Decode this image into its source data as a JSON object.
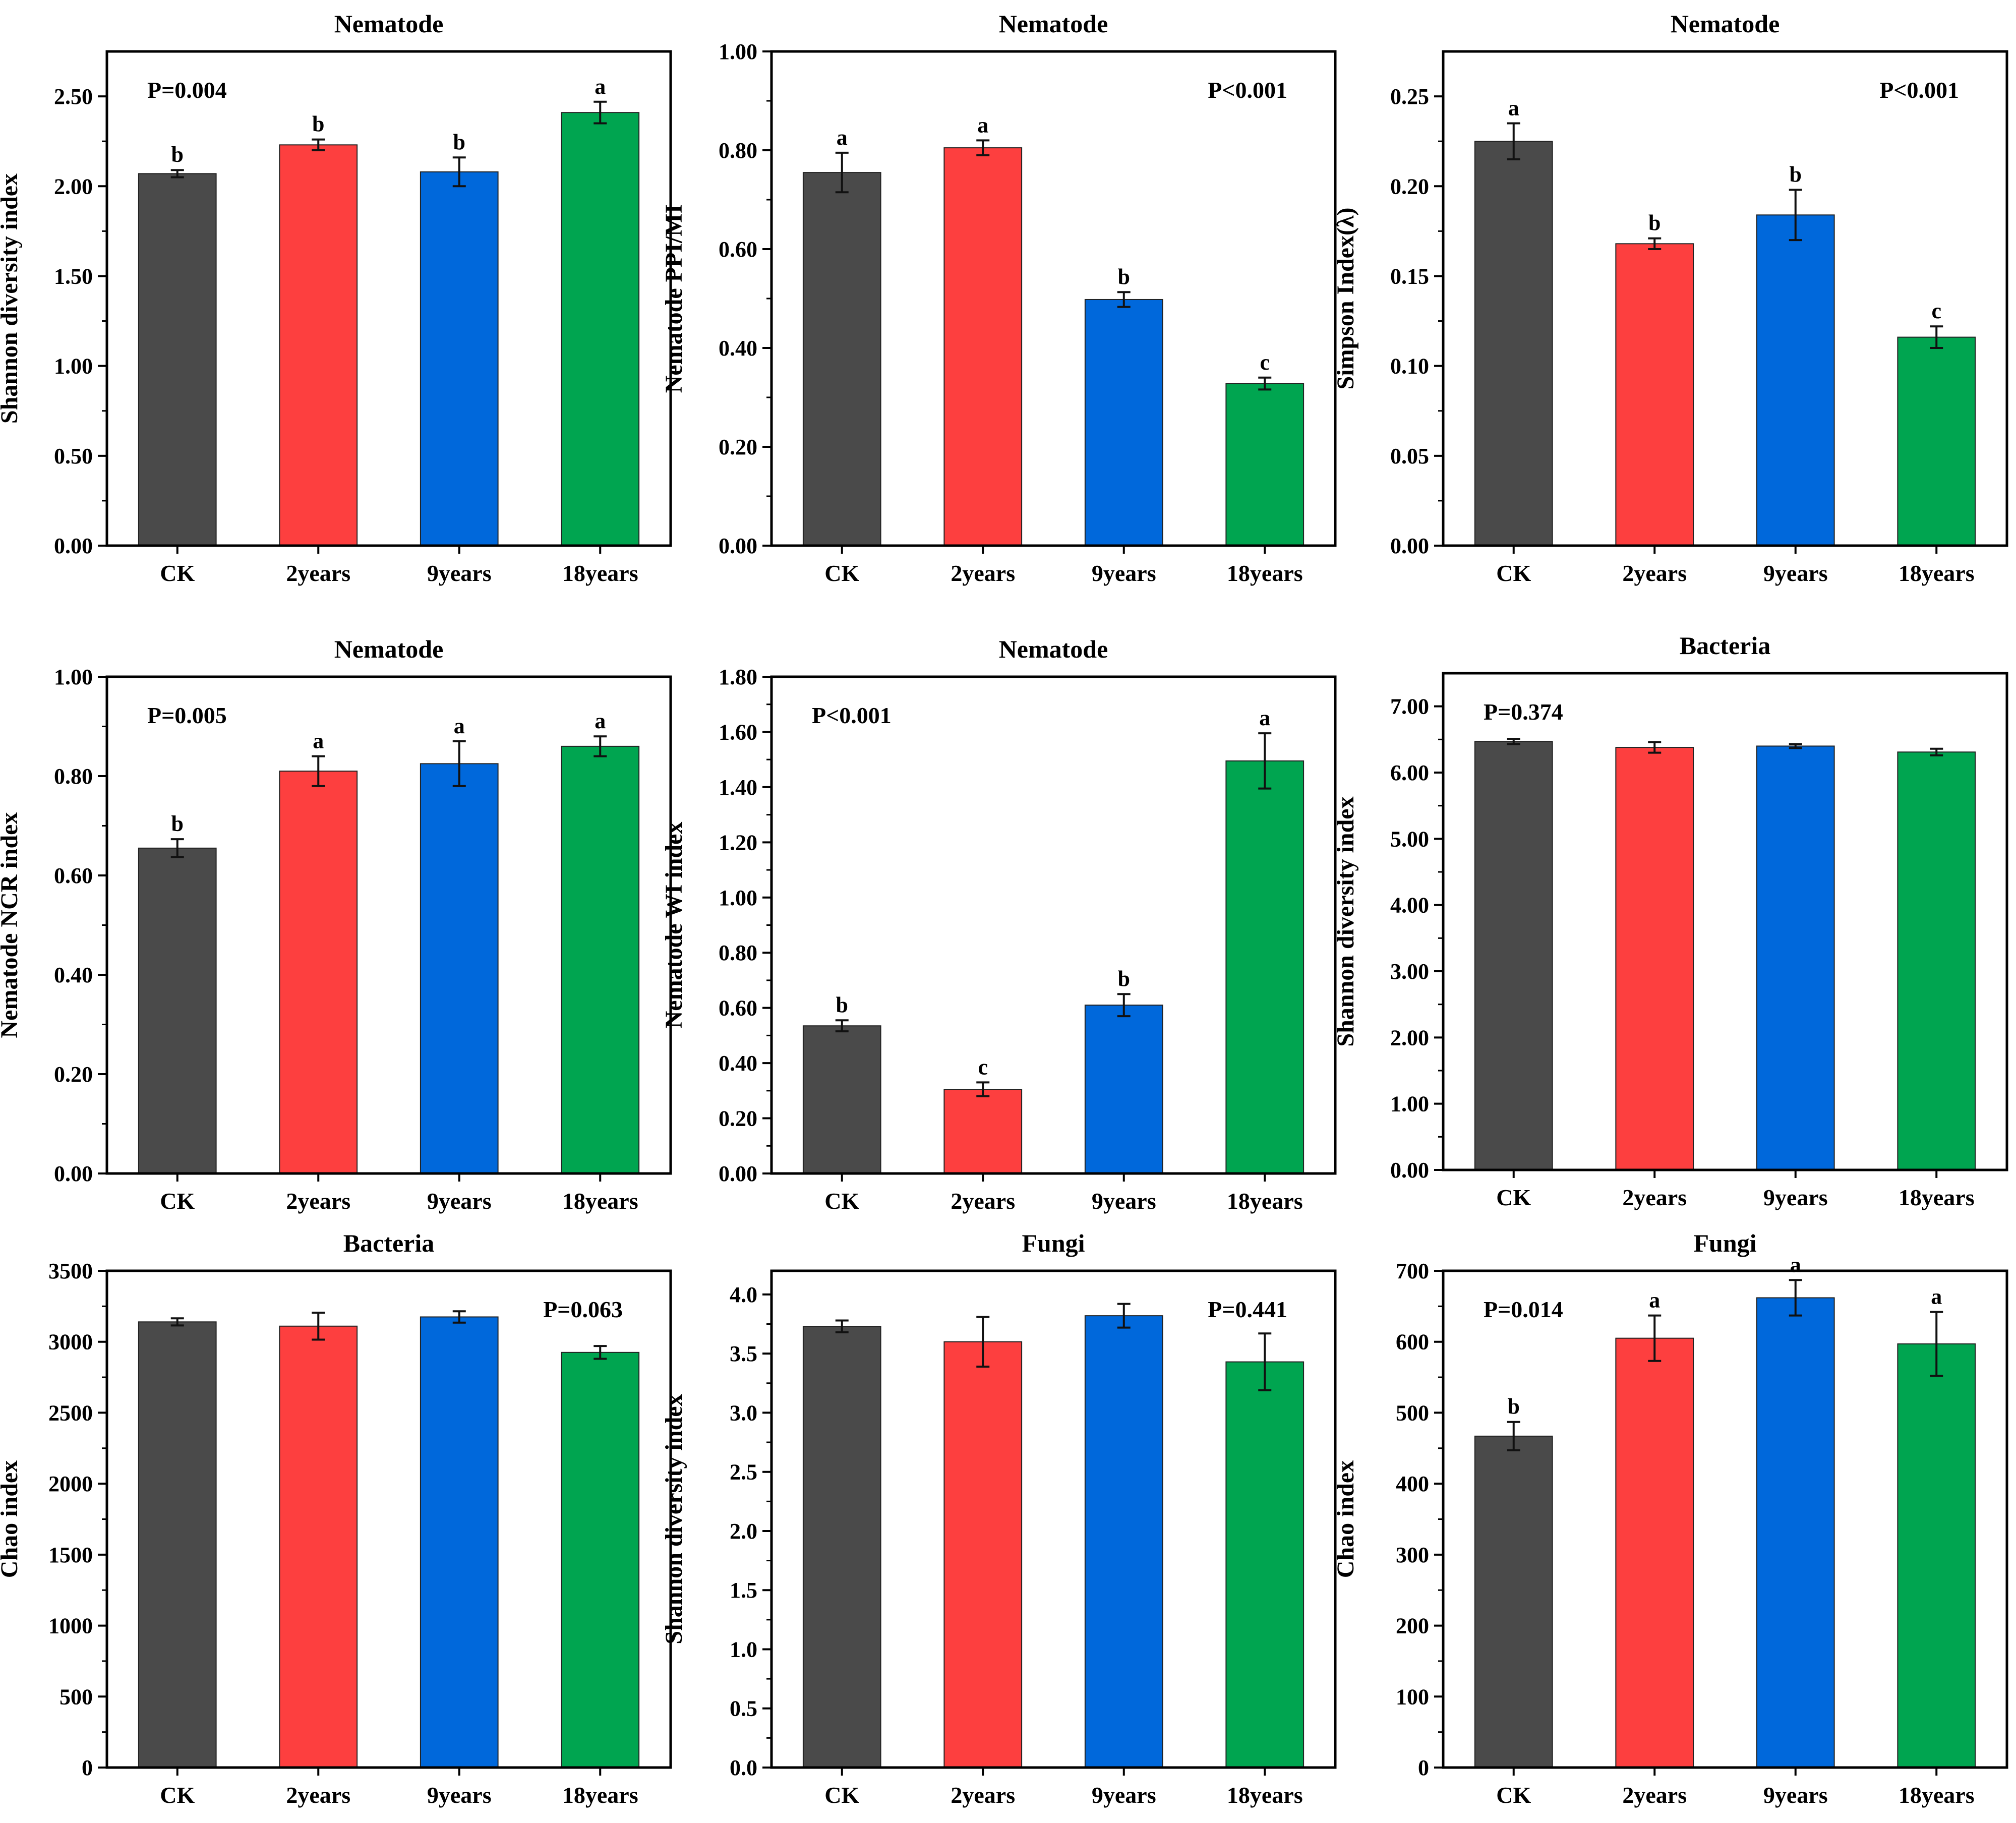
{
  "colors": {
    "CK": "#4a4a4a",
    "2years": "#fd3f3f",
    "9years": "#0068db",
    "18years": "#00a550",
    "axis": "#000000"
  },
  "chart_data": [
    {
      "type": "bar",
      "title": "Nematode",
      "ylabel": "Shannon diversity index",
      "categories": [
        "CK",
        "2years",
        "9years",
        "18years"
      ],
      "values": [
        2.07,
        2.23,
        2.08,
        2.41
      ],
      "errors": [
        0.02,
        0.03,
        0.08,
        0.06
      ],
      "letters": [
        "b",
        "b",
        "b",
        "a"
      ],
      "pvalue": "P=0.004",
      "pvalue_pos": "top-left",
      "ylim": [
        0,
        2.75
      ],
      "yticks": [
        0,
        0.5,
        1.0,
        1.5,
        2.0,
        2.5
      ],
      "yticklabels": [
        "0.00",
        "0.50",
        "1.00",
        "1.50",
        "2.00",
        "2.50"
      ]
    },
    {
      "type": "bar",
      "title": "Nematode",
      "ylabel": "Nematode PPI/MI",
      "categories": [
        "CK",
        "2years",
        "9years",
        "18years"
      ],
      "values": [
        0.755,
        0.805,
        0.498,
        0.328
      ],
      "errors": [
        0.04,
        0.015,
        0.015,
        0.012
      ],
      "letters": [
        "a",
        "a",
        "b",
        "c"
      ],
      "pvalue": "P<0.001",
      "pvalue_pos": "top-right",
      "ylim": [
        0,
        1.0
      ],
      "yticks": [
        0,
        0.2,
        0.4,
        0.6,
        0.8,
        1.0
      ],
      "yticklabels": [
        "0.00",
        "0.20",
        "0.40",
        "0.60",
        "0.80",
        "1.00"
      ]
    },
    {
      "type": "bar",
      "title": "Nematode",
      "ylabel": "Simpson Index(λ)",
      "categories": [
        "CK",
        "2years",
        "9years",
        "18years"
      ],
      "values": [
        0.225,
        0.168,
        0.184,
        0.116
      ],
      "errors": [
        0.01,
        0.003,
        0.014,
        0.006
      ],
      "letters": [
        "a",
        "b",
        "b",
        "c"
      ],
      "pvalue": "P<0.001",
      "pvalue_pos": "top-right",
      "ylim": [
        0,
        0.275
      ],
      "yticks": [
        0,
        0.05,
        0.1,
        0.15,
        0.2,
        0.25
      ],
      "yticklabels": [
        "0.00",
        "0.05",
        "0.10",
        "0.15",
        "0.20",
        "0.25"
      ]
    },
    {
      "type": "bar",
      "title": "Nematode",
      "ylabel": "Nematode NCR index",
      "categories": [
        "CK",
        "2years",
        "9years",
        "18years"
      ],
      "values": [
        0.655,
        0.81,
        0.825,
        0.86
      ],
      "errors": [
        0.018,
        0.03,
        0.045,
        0.02
      ],
      "letters": [
        "b",
        "a",
        "a",
        "a"
      ],
      "pvalue": "P=0.005",
      "pvalue_pos": "top-left",
      "ylim": [
        0,
        1.0
      ],
      "yticks": [
        0,
        0.2,
        0.4,
        0.6,
        0.8,
        1.0
      ],
      "yticklabels": [
        "0.00",
        "0.20",
        "0.40",
        "0.60",
        "0.80",
        "1.00"
      ]
    },
    {
      "type": "bar",
      "title": "Nematode",
      "ylabel": "Nematode WI index",
      "categories": [
        "CK",
        "2years",
        "9years",
        "18years"
      ],
      "values": [
        0.535,
        0.305,
        0.61,
        1.495
      ],
      "errors": [
        0.02,
        0.025,
        0.04,
        0.1
      ],
      "letters": [
        "b",
        "c",
        "b",
        "a"
      ],
      "pvalue": "P<0.001",
      "pvalue_pos": "top-left",
      "ylim": [
        0,
        1.8
      ],
      "yticks": [
        0,
        0.2,
        0.4,
        0.6,
        0.8,
        1.0,
        1.2,
        1.4,
        1.6,
        1.8
      ],
      "yticklabels": [
        "0.00",
        "0.20",
        "0.40",
        "0.60",
        "0.80",
        "1.00",
        "1.20",
        "1.40",
        "1.60",
        "1.80"
      ]
    },
    {
      "type": "bar",
      "title": "Bacteria",
      "ylabel": "Shannon diversity index",
      "categories": [
        "CK",
        "2years",
        "9years",
        "18years"
      ],
      "values": [
        6.47,
        6.38,
        6.4,
        6.31
      ],
      "errors": [
        0.04,
        0.08,
        0.03,
        0.05
      ],
      "letters": [
        "",
        "",
        "",
        ""
      ],
      "pvalue": "P=0.374",
      "pvalue_pos": "top-left",
      "ylim": [
        0,
        7.5
      ],
      "yticks": [
        0,
        1,
        2,
        3,
        4,
        5,
        6,
        7
      ],
      "yticklabels": [
        "0.00",
        "1.00",
        "2.00",
        "3.00",
        "4.00",
        "5.00",
        "6.00",
        "7.00"
      ]
    },
    {
      "type": "bar",
      "title": "Bacteria",
      "ylabel": "Chao index",
      "categories": [
        "CK",
        "2years",
        "9years",
        "18years"
      ],
      "values": [
        3140,
        3110,
        3175,
        2925
      ],
      "errors": [
        25,
        95,
        40,
        45
      ],
      "letters": [
        "",
        "",
        "",
        ""
      ],
      "pvalue": "P=0.063",
      "pvalue_pos": "top-right",
      "ylim": [
        0,
        3500
      ],
      "yticks": [
        0,
        500,
        1000,
        1500,
        2000,
        2500,
        3000,
        3500
      ],
      "yticklabels": [
        "0",
        "500",
        "1000",
        "1500",
        "2000",
        "2500",
        "3000",
        "3500"
      ]
    },
    {
      "type": "bar",
      "title": "Fungi",
      "ylabel": "Shannon diversity index",
      "categories": [
        "CK",
        "2years",
        "9years",
        "18years"
      ],
      "values": [
        3.73,
        3.6,
        3.82,
        3.43
      ],
      "errors": [
        0.05,
        0.21,
        0.1,
        0.24
      ],
      "letters": [
        "",
        "",
        "",
        ""
      ],
      "pvalue": "P=0.441",
      "pvalue_pos": "top-right",
      "ylim": [
        0,
        4.2
      ],
      "yticks": [
        0,
        0.5,
        1.0,
        1.5,
        2.0,
        2.5,
        3.0,
        3.5,
        4.0
      ],
      "yticklabels": [
        "0.0",
        "0.5",
        "1.0",
        "1.5",
        "2.0",
        "2.5",
        "3.0",
        "3.5",
        "4.0"
      ]
    },
    {
      "type": "bar",
      "title": "Fungi",
      "ylabel": "Chao index",
      "categories": [
        "CK",
        "2years",
        "9years",
        "18years"
      ],
      "values": [
        467,
        605,
        662,
        597
      ],
      "errors": [
        20,
        32,
        25,
        45
      ],
      "letters": [
        "b",
        "a",
        "a",
        "a"
      ],
      "pvalue": "P=0.014",
      "pvalue_pos": "top-left",
      "ylim": [
        0,
        700
      ],
      "yticks": [
        0,
        100,
        200,
        300,
        400,
        500,
        600,
        700
      ],
      "yticklabels": [
        "0",
        "100",
        "200",
        "300",
        "400",
        "500",
        "600",
        "700"
      ]
    }
  ]
}
